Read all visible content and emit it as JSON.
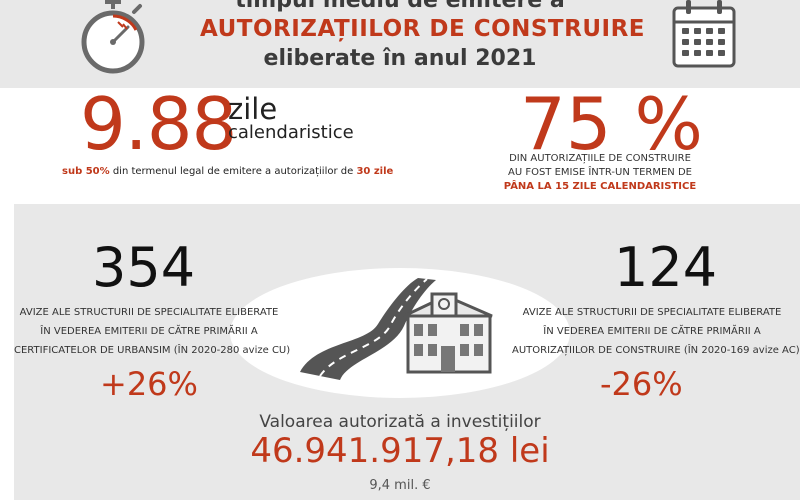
{
  "header": {
    "line1": "timpul mediu de emitere a",
    "line2": "AUTORIZAȚIILOR DE CONSTRUIRE",
    "line3": "eliberate în anul 2021",
    "stopwatch_icon": "stopwatch-icon",
    "calendar_icon": "calendar-icon"
  },
  "average_time": {
    "value": "9.88",
    "unit_line1": "zile",
    "unit_line2": "calendaristice",
    "note_part1": "sub 50%",
    "note_part2": " din termenul legal de emitere a autorizațiilor de ",
    "note_part3": "30 zile"
  },
  "share": {
    "value": "75 %",
    "line1": "DIN AUTORIZAȚIILE  DE CONSTRUIRE",
    "line2": "AU FOST EMISE  ÎNTR-UN TERMEN DE",
    "line3": "PÂNA LA 15 ZILE CALENDARISTICE"
  },
  "cu_notices": {
    "value": "354",
    "line1": "AVIZE ALE STRUCTURII DE SPECIALITATE ELIBERATE",
    "line2": "ÎN VEDEREA  EMITERII DE CĂTRE PRIMĂRII A",
    "line3": "CERTIFICATELOR DE URBANSIM  (ÎN 2020-280 avize CU)",
    "change": "+26%"
  },
  "ac_notices": {
    "value": "124",
    "line1": "AVIZE ALE STRUCTURII DE SPECIALITATE ELIBERATE",
    "line2": "ÎN VEDEREA EMITERII  DE CĂTRE PRIMĂRII A",
    "line3": "AUTORIZAȚIILOR DE CONSTRUIRE (ÎN 2020-169 avize AC)",
    "change": "-26%"
  },
  "investment": {
    "label": "Valoarea autorizată a investițiilor",
    "value": "46.941.917,18 lei",
    "eur": "9,4 mil. €"
  },
  "colors": {
    "accent": "#c0391b",
    "band": "#e8e8e8",
    "dark": "#3b3b3b"
  }
}
